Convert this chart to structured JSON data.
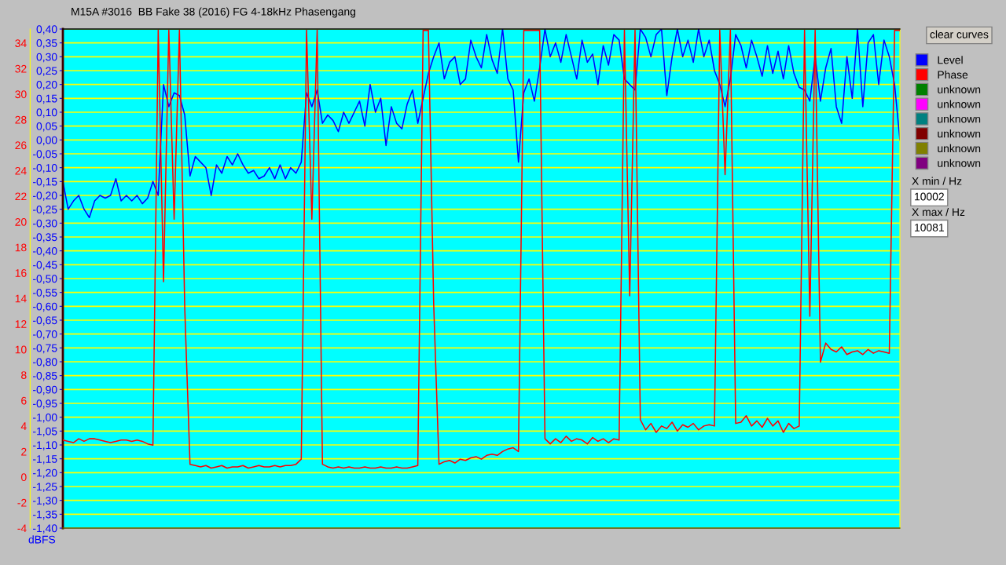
{
  "chart_data": {
    "type": "line",
    "title": "M15A #3016  BB Fake 38 (2016) FG 4-18kHz Phasengang",
    "ylabel": "dBFS",
    "categories": [
      null,
      null,
      null,
      null,
      null,
      null,
      null,
      null,
      null,
      null,
      null,
      null,
      null,
      null,
      null,
      null,
      null,
      null,
      null,
      null,
      null,
      null,
      null,
      null,
      null,
      null,
      null,
      null,
      null,
      null,
      null,
      null,
      null,
      null,
      null,
      null,
      null,
      null,
      null,
      null,
      null,
      null,
      null,
      null,
      null,
      null,
      null,
      null,
      null,
      null,
      null,
      null,
      null,
      null,
      null,
      null,
      null,
      null,
      null,
      null,
      null,
      null,
      null,
      null,
      null,
      null,
      null,
      null,
      null,
      null,
      null,
      null,
      null,
      null,
      null,
      null,
      null,
      null,
      null,
      null,
      null,
      null,
      null,
      null,
      null,
      null,
      null,
      null,
      null,
      null,
      null,
      null,
      null,
      null,
      null,
      null,
      null,
      null,
      null,
      null,
      null,
      null,
      null,
      null,
      null,
      null,
      null,
      null,
      null,
      null,
      null,
      null,
      null,
      null,
      null,
      null,
      null,
      null,
      null,
      null,
      null,
      null,
      null,
      null,
      null,
      null,
      null,
      null,
      null,
      null,
      null,
      null,
      null,
      null,
      null,
      null,
      null,
      null,
      null,
      null,
      null,
      null,
      null,
      null,
      null,
      null,
      null,
      null,
      null,
      null,
      null,
      null,
      null,
      null,
      null,
      null,
      null,
      null,
      null
    ],
    "ylim": [
      -1.4,
      0.4
    ],
    "yticks": [
      {
        "value": 0.4,
        "label": "0,40"
      },
      {
        "value": 0.35,
        "label": "0,35"
      },
      {
        "value": 0.3,
        "label": "0,30"
      },
      {
        "value": 0.25,
        "label": "0,25"
      },
      {
        "value": 0.2,
        "label": "0,20"
      },
      {
        "value": 0.15,
        "label": "0,15"
      },
      {
        "value": 0.1,
        "label": "0,10"
      },
      {
        "value": 0.05,
        "label": "0,05"
      },
      {
        "value": 0.0,
        "label": "0,00"
      },
      {
        "value": -0.05,
        "label": "-0,05"
      },
      {
        "value": -0.1,
        "label": "-0,10"
      },
      {
        "value": -0.15,
        "label": "-0,15"
      },
      {
        "value": -0.2,
        "label": "-0,20"
      },
      {
        "value": -0.25,
        "label": "-0,25"
      },
      {
        "value": -0.3,
        "label": "-0,30"
      },
      {
        "value": -0.35,
        "label": "-0,35"
      },
      {
        "value": -0.4,
        "label": "-0,40"
      },
      {
        "value": -0.45,
        "label": "-0,45"
      },
      {
        "value": -0.5,
        "label": "-0,50"
      },
      {
        "value": -0.55,
        "label": "-0,55"
      },
      {
        "value": -0.6,
        "label": "-0,60"
      },
      {
        "value": -0.65,
        "label": "-0,65"
      },
      {
        "value": -0.7,
        "label": "-0,70"
      },
      {
        "value": -0.75,
        "label": "-0,75"
      },
      {
        "value": -0.8,
        "label": "-0,80"
      },
      {
        "value": -0.85,
        "label": "-0,85"
      },
      {
        "value": -0.9,
        "label": "-0,90"
      },
      {
        "value": -0.95,
        "label": "-0,95"
      },
      {
        "value": -1.0,
        "label": "-1,00"
      },
      {
        "value": -1.05,
        "label": "-1,05"
      },
      {
        "value": -1.1,
        "label": "-1,10"
      },
      {
        "value": -1.15,
        "label": "-1,15"
      },
      {
        "value": -1.2,
        "label": "-1,20"
      },
      {
        "value": -1.25,
        "label": "-1,25"
      },
      {
        "value": -1.3,
        "label": "-1,30"
      },
      {
        "value": -1.35,
        "label": "-1,35"
      },
      {
        "value": -1.4,
        "label": "-1,40"
      }
    ],
    "y2lim": [
      -4,
      35.1
    ],
    "y2ticks": [
      -4,
      -2,
      0,
      2,
      4,
      6,
      8,
      10,
      12,
      14,
      16,
      18,
      20,
      22,
      24,
      26,
      28,
      30,
      32,
      34
    ],
    "grid": "y",
    "legend": "right",
    "marker": "none",
    "line_style": "solid",
    "annotations": [
      "clear curves",
      "X min / Hz",
      "10002",
      "X max / Hz",
      "10081"
    ],
    "series": [
      {
        "name": "Level",
        "color": "#0000ff",
        "values": [
          -0.15,
          -0.25,
          -0.22,
          -0.2,
          -0.25,
          -0.28,
          -0.22,
          -0.2,
          -0.21,
          -0.2,
          -0.14,
          -0.22,
          -0.2,
          -0.22,
          -0.2,
          -0.23,
          -0.21,
          -0.15,
          -0.2,
          0.2,
          0.12,
          0.17,
          0.16,
          0.09,
          -0.13,
          -0.06,
          -0.08,
          -0.1,
          -0.2,
          -0.09,
          -0.12,
          -0.06,
          -0.09,
          -0.05,
          -0.09,
          -0.12,
          -0.11,
          -0.14,
          -0.13,
          -0.1,
          -0.14,
          -0.09,
          -0.14,
          -0.1,
          -0.12,
          -0.08,
          0.17,
          0.12,
          0.18,
          0.06,
          0.09,
          0.07,
          0.03,
          0.1,
          0.06,
          0.1,
          0.14,
          0.05,
          0.2,
          0.1,
          0.15,
          -0.02,
          0.12,
          0.06,
          0.04,
          0.13,
          0.18,
          0.06,
          0.15,
          0.24,
          0.3,
          0.35,
          0.22,
          0.28,
          0.3,
          0.2,
          0.22,
          0.36,
          0.3,
          0.26,
          0.38,
          0.29,
          0.24,
          0.4,
          0.22,
          0.18,
          -0.08,
          0.17,
          0.22,
          0.14,
          0.26,
          0.4,
          0.3,
          0.35,
          0.28,
          0.38,
          0.3,
          0.22,
          0.36,
          0.28,
          0.31,
          0.2,
          0.34,
          0.27,
          0.38,
          0.36,
          0.22,
          0.2,
          0.18,
          0.4,
          0.37,
          0.3,
          0.38,
          0.4,
          0.16,
          0.3,
          0.4,
          0.3,
          0.36,
          0.28,
          0.4,
          0.3,
          0.36,
          0.25,
          0.2,
          0.12,
          0.22,
          0.38,
          0.34,
          0.26,
          0.36,
          0.3,
          0.23,
          0.34,
          0.24,
          0.32,
          0.22,
          0.34,
          0.24,
          0.19,
          0.18,
          0.14,
          0.3,
          0.14,
          0.26,
          0.33,
          0.12,
          0.06,
          0.3,
          0.15,
          0.4,
          0.12,
          0.35,
          0.38,
          0.2,
          0.36,
          0.3,
          0.2,
          0.0
        ]
      },
      {
        "name": "Phase",
        "color": "#ff0000",
        "axis": "y2",
        "values": [
          2.9,
          2.8,
          2.7,
          3.0,
          2.8,
          3.0,
          3.0,
          2.9,
          2.8,
          2.7,
          2.8,
          2.9,
          2.9,
          2.8,
          2.9,
          2.8,
          2.6,
          2.5,
          35,
          15.3,
          35,
          20.2,
          35,
          13.3,
          1.0,
          0.9,
          0.8,
          0.9,
          0.7,
          0.8,
          0.9,
          0.7,
          0.8,
          0.8,
          0.9,
          0.7,
          0.8,
          0.9,
          0.8,
          0.8,
          0.9,
          0.8,
          0.9,
          0.9,
          1.0,
          1.4,
          35,
          20.2,
          35,
          1.0,
          0.8,
          0.7,
          0.8,
          0.7,
          0.8,
          0.7,
          0.7,
          0.8,
          0.7,
          0.7,
          0.8,
          0.7,
          0.7,
          0.8,
          0.7,
          0.7,
          0.8,
          0.9,
          35,
          35,
          13.5,
          1.0,
          1.2,
          1.3,
          1.1,
          1.4,
          1.3,
          1.5,
          1.6,
          1.4,
          1.7,
          1.8,
          1.7,
          2.0,
          2.2,
          2.3,
          2.0,
          35,
          35,
          35,
          35,
          3.0,
          2.6,
          3.0,
          2.7,
          3.2,
          2.8,
          3.0,
          2.9,
          2.6,
          3.1,
          2.8,
          3.0,
          2.7,
          3.0,
          2.9,
          35,
          14.2,
          35,
          4.5,
          3.7,
          4.2,
          3.5,
          4.0,
          3.8,
          4.3,
          3.6,
          4.1,
          3.9,
          4.2,
          3.7,
          4.0,
          4.1,
          4.0,
          35,
          23.7,
          35,
          4.2,
          4.3,
          4.8,
          4.0,
          4.4,
          3.9,
          4.6,
          4.0,
          4.4,
          3.5,
          4.2,
          3.8,
          4.0,
          35,
          12.6,
          35,
          9.0,
          10.5,
          10.0,
          9.8,
          10.2,
          9.6,
          9.8,
          9.9,
          9.6,
          10.0,
          9.7,
          9.9,
          9.8,
          9.7,
          35,
          35
        ]
      },
      {
        "name": "unknown",
        "color": "#008000",
        "values": [
          null,
          null,
          null,
          null,
          null,
          null,
          null,
          null,
          null,
          null,
          null,
          null,
          null,
          null,
          null,
          null,
          null,
          null,
          null,
          null,
          null,
          null,
          null,
          null,
          null,
          null,
          null,
          null,
          null,
          null,
          null,
          null,
          null,
          null,
          null,
          null,
          null,
          null,
          null,
          null,
          null,
          null,
          null,
          null,
          null,
          null,
          null,
          null,
          null,
          null,
          null,
          null,
          null,
          null,
          null,
          null,
          null,
          null,
          null,
          null,
          null,
          null,
          null,
          null,
          null,
          null,
          null,
          null,
          null,
          null,
          null,
          null,
          null,
          null,
          null,
          null,
          null,
          null,
          null,
          null,
          null,
          null,
          null,
          null,
          null,
          null,
          null,
          null,
          null,
          null,
          null,
          null,
          null,
          null,
          null,
          null,
          null,
          null,
          null,
          null,
          null,
          null,
          null,
          null,
          null,
          null,
          null,
          null,
          null,
          null,
          null,
          null,
          null,
          null,
          null,
          null,
          null,
          null,
          null,
          null,
          null,
          null,
          null,
          null,
          null,
          null,
          null,
          null,
          null,
          null,
          null,
          null,
          null,
          null,
          null,
          null,
          null,
          null,
          null,
          null,
          null,
          null,
          null,
          null,
          null,
          null,
          null,
          null,
          null,
          null,
          null,
          null,
          null,
          null,
          null,
          null,
          null,
          null,
          null
        ]
      },
      {
        "name": "unknown",
        "color": "#ff00ff",
        "values": [
          null,
          null,
          null,
          null,
          null,
          null,
          null,
          null,
          null,
          null,
          null,
          null,
          null,
          null,
          null,
          null,
          null,
          null,
          null,
          null,
          null,
          null,
          null,
          null,
          null,
          null,
          null,
          null,
          null,
          null,
          null,
          null,
          null,
          null,
          null,
          null,
          null,
          null,
          null,
          null,
          null,
          null,
          null,
          null,
          null,
          null,
          null,
          null,
          null,
          null,
          null,
          null,
          null,
          null,
          null,
          null,
          null,
          null,
          null,
          null,
          null,
          null,
          null,
          null,
          null,
          null,
          null,
          null,
          null,
          null,
          null,
          null,
          null,
          null,
          null,
          null,
          null,
          null,
          null,
          null,
          null,
          null,
          null,
          null,
          null,
          null,
          null,
          null,
          null,
          null,
          null,
          null,
          null,
          null,
          null,
          null,
          null,
          null,
          null,
          null,
          null,
          null,
          null,
          null,
          null,
          null,
          null,
          null,
          null,
          null,
          null,
          null,
          null,
          null,
          null,
          null,
          null,
          null,
          null,
          null,
          null,
          null,
          null,
          null,
          null,
          null,
          null,
          null,
          null,
          null,
          null,
          null,
          null,
          null,
          null,
          null,
          null,
          null,
          null,
          null,
          null,
          null,
          null,
          null,
          null,
          null,
          null,
          null,
          null,
          null,
          null,
          null,
          null,
          null,
          null,
          null,
          null,
          null,
          null
        ]
      },
      {
        "name": "unknown",
        "color": "#008080",
        "values": [
          null,
          null,
          null,
          null,
          null,
          null,
          null,
          null,
          null,
          null,
          null,
          null,
          null,
          null,
          null,
          null,
          null,
          null,
          null,
          null,
          null,
          null,
          null,
          null,
          null,
          null,
          null,
          null,
          null,
          null,
          null,
          null,
          null,
          null,
          null,
          null,
          null,
          null,
          null,
          null,
          null,
          null,
          null,
          null,
          null,
          null,
          null,
          null,
          null,
          null,
          null,
          null,
          null,
          null,
          null,
          null,
          null,
          null,
          null,
          null,
          null,
          null,
          null,
          null,
          null,
          null,
          null,
          null,
          null,
          null,
          null,
          null,
          null,
          null,
          null,
          null,
          null,
          null,
          null,
          null,
          null,
          null,
          null,
          null,
          null,
          null,
          null,
          null,
          null,
          null,
          null,
          null,
          null,
          null,
          null,
          null,
          null,
          null,
          null,
          null,
          null,
          null,
          null,
          null,
          null,
          null,
          null,
          null,
          null,
          null,
          null,
          null,
          null,
          null,
          null,
          null,
          null,
          null,
          null,
          null,
          null,
          null,
          null,
          null,
          null,
          null,
          null,
          null,
          null,
          null,
          null,
          null,
          null,
          null,
          null,
          null,
          null,
          null,
          null,
          null,
          null,
          null,
          null,
          null,
          null,
          null,
          null,
          null,
          null,
          null,
          null,
          null,
          null,
          null,
          null,
          null,
          null,
          null,
          null
        ]
      },
      {
        "name": "unknown",
        "color": "#800000",
        "values": [
          null,
          null,
          null,
          null,
          null,
          null,
          null,
          null,
          null,
          null,
          null,
          null,
          null,
          null,
          null,
          null,
          null,
          null,
          null,
          null,
          null,
          null,
          null,
          null,
          null,
          null,
          null,
          null,
          null,
          null,
          null,
          null,
          null,
          null,
          null,
          null,
          null,
          null,
          null,
          null,
          null,
          null,
          null,
          null,
          null,
          null,
          null,
          null,
          null,
          null,
          null,
          null,
          null,
          null,
          null,
          null,
          null,
          null,
          null,
          null,
          null,
          null,
          null,
          null,
          null,
          null,
          null,
          null,
          null,
          null,
          null,
          null,
          null,
          null,
          null,
          null,
          null,
          null,
          null,
          null,
          null,
          null,
          null,
          null,
          null,
          null,
          null,
          null,
          null,
          null,
          null,
          null,
          null,
          null,
          null,
          null,
          null,
          null,
          null,
          null,
          null,
          null,
          null,
          null,
          null,
          null,
          null,
          null,
          null,
          null,
          null,
          null,
          null,
          null,
          null,
          null,
          null,
          null,
          null,
          null,
          null,
          null,
          null,
          null,
          null,
          null,
          null,
          null,
          null,
          null,
          null,
          null,
          null,
          null,
          null,
          null,
          null,
          null,
          null,
          null,
          null,
          null,
          null,
          null,
          null,
          null,
          null,
          null,
          null,
          null,
          null,
          null,
          null,
          null,
          null,
          null,
          null,
          null,
          null
        ]
      },
      {
        "name": "unknown",
        "color": "#808000",
        "values": [
          null,
          null,
          null,
          null,
          null,
          null,
          null,
          null,
          null,
          null,
          null,
          null,
          null,
          null,
          null,
          null,
          null,
          null,
          null,
          null,
          null,
          null,
          null,
          null,
          null,
          null,
          null,
          null,
          null,
          null,
          null,
          null,
          null,
          null,
          null,
          null,
          null,
          null,
          null,
          null,
          null,
          null,
          null,
          null,
          null,
          null,
          null,
          null,
          null,
          null,
          null,
          null,
          null,
          null,
          null,
          null,
          null,
          null,
          null,
          null,
          null,
          null,
          null,
          null,
          null,
          null,
          null,
          null,
          null,
          null,
          null,
          null,
          null,
          null,
          null,
          null,
          null,
          null,
          null,
          null,
          null,
          null,
          null,
          null,
          null,
          null,
          null,
          null,
          null,
          null,
          null,
          null,
          null,
          null,
          null,
          null,
          null,
          null,
          null,
          null,
          null,
          null,
          null,
          null,
          null,
          null,
          null,
          null,
          null,
          null,
          null,
          null,
          null,
          null,
          null,
          null,
          null,
          null,
          null,
          null,
          null,
          null,
          null,
          null,
          null,
          null,
          null,
          null,
          null,
          null,
          null,
          null,
          null,
          null,
          null,
          null,
          null,
          null,
          null,
          null,
          null,
          null,
          null,
          null,
          null,
          null,
          null,
          null,
          null,
          null,
          null,
          null,
          null,
          null,
          null,
          null,
          null,
          null,
          null
        ]
      },
      {
        "name": "unknown",
        "color": "#800080",
        "values": [
          null,
          null,
          null,
          null,
          null,
          null,
          null,
          null,
          null,
          null,
          null,
          null,
          null,
          null,
          null,
          null,
          null,
          null,
          null,
          null,
          null,
          null,
          null,
          null,
          null,
          null,
          null,
          null,
          null,
          null,
          null,
          null,
          null,
          null,
          null,
          null,
          null,
          null,
          null,
          null,
          null,
          null,
          null,
          null,
          null,
          null,
          null,
          null,
          null,
          null,
          null,
          null,
          null,
          null,
          null,
          null,
          null,
          null,
          null,
          null,
          null,
          null,
          null,
          null,
          null,
          null,
          null,
          null,
          null,
          null,
          null,
          null,
          null,
          null,
          null,
          null,
          null,
          null,
          null,
          null,
          null,
          null,
          null,
          null,
          null,
          null,
          null,
          null,
          null,
          null,
          null,
          null,
          null,
          null,
          null,
          null,
          null,
          null,
          null,
          null,
          null,
          null,
          null,
          null,
          null,
          null,
          null,
          null,
          null,
          null,
          null,
          null,
          null,
          null,
          null,
          null,
          null,
          null,
          null,
          null,
          null,
          null,
          null,
          null,
          null,
          null,
          null,
          null,
          null,
          null,
          null,
          null,
          null,
          null,
          null,
          null,
          null,
          null,
          null,
          null,
          null,
          null,
          null,
          null,
          null,
          null,
          null,
          null,
          null,
          null,
          null,
          null,
          null,
          null,
          null,
          null,
          null,
          null,
          null
        ]
      }
    ]
  }
}
